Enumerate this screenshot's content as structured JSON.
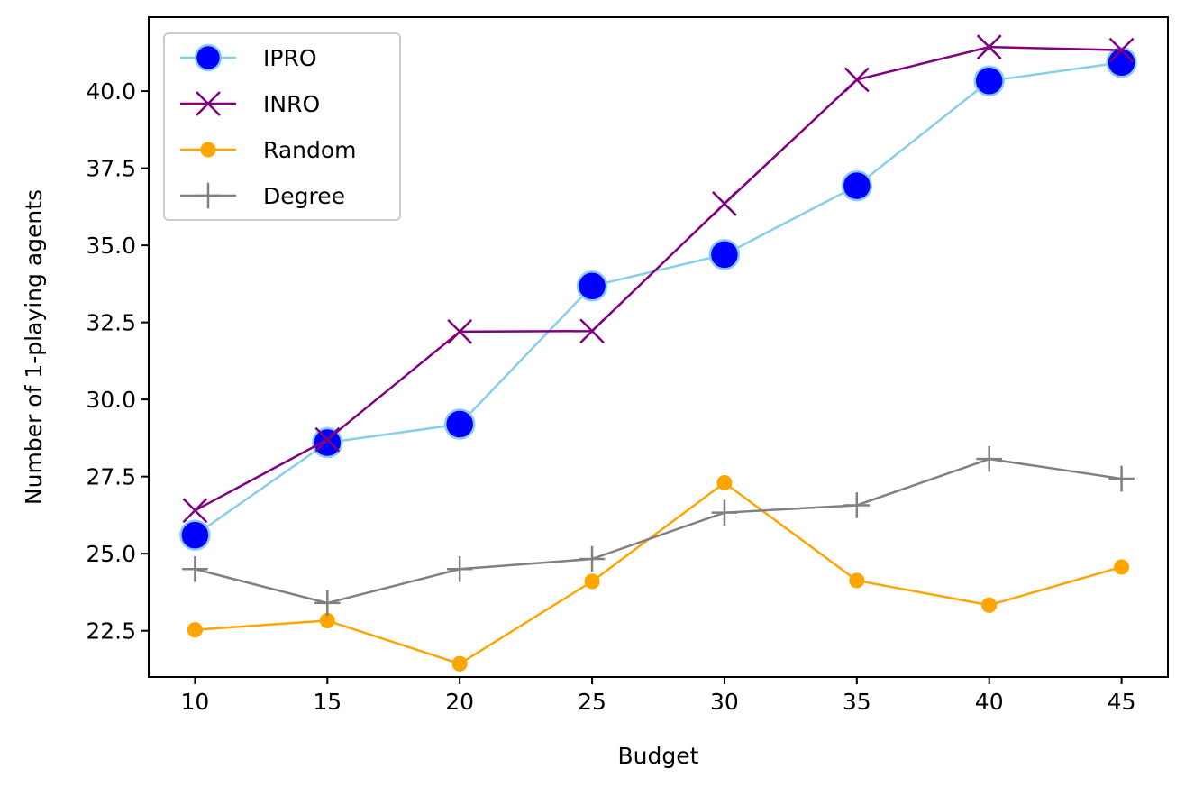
{
  "chart_data": {
    "type": "line",
    "title": "",
    "xlabel": "Budget",
    "ylabel": "Number of 1-playing agents",
    "x": [
      10,
      15,
      20,
      25,
      30,
      35,
      40,
      45
    ],
    "xlim": [
      8.25,
      46.75
    ],
    "ylim": [
      21.0,
      42.4
    ],
    "xticks": [
      10,
      15,
      20,
      25,
      30,
      35,
      40,
      45
    ],
    "yticks": [
      22.5,
      25.0,
      27.5,
      30.0,
      32.5,
      35.0,
      37.5,
      40.0
    ],
    "xtick_labels": [
      "10",
      "15",
      "20",
      "25",
      "30",
      "35",
      "40",
      "45"
    ],
    "ytick_labels": [
      "22.5",
      "25.0",
      "27.5",
      "30.0",
      "32.5",
      "35.0",
      "37.5",
      "40.0"
    ],
    "grid": false,
    "legend_position": "upper-left",
    "series": [
      {
        "name": "IPRO",
        "color": "#87ceeb",
        "marker": "circle",
        "marker_face": "#0000ff",
        "values": [
          25.6,
          28.6,
          29.2,
          33.68,
          34.7,
          36.93,
          40.33,
          40.93
        ]
      },
      {
        "name": "INRO",
        "color": "#800080",
        "marker": "x",
        "values": [
          26.4,
          28.7,
          32.2,
          32.22,
          36.35,
          40.37,
          41.43,
          41.33
        ]
      },
      {
        "name": "Random",
        "color": "#ffa500",
        "marker": "dot",
        "values": [
          22.53,
          22.83,
          21.43,
          24.1,
          27.3,
          24.13,
          23.33,
          24.57
        ]
      },
      {
        "name": "Degree",
        "color": "#808080",
        "marker": "plus",
        "values": [
          24.5,
          23.4,
          24.5,
          24.83,
          26.33,
          26.57,
          28.07,
          27.43
        ]
      }
    ]
  }
}
